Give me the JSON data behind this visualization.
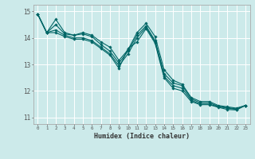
{
  "xlabel": "Humidex (Indice chaleur)",
  "ylabel": "",
  "bg_color": "#cceaea",
  "grid_color": "#ffffff",
  "line_color": "#006666",
  "xlim": [
    -0.5,
    23.5
  ],
  "ylim": [
    10.75,
    15.25
  ],
  "yticks": [
    11,
    12,
    13,
    14,
    15
  ],
  "xticks": [
    0,
    1,
    2,
    3,
    4,
    5,
    6,
    7,
    8,
    9,
    10,
    11,
    12,
    13,
    14,
    15,
    16,
    17,
    18,
    19,
    20,
    21,
    22,
    23
  ],
  "lines": [
    [
      14.9,
      14.2,
      14.7,
      14.2,
      14.1,
      14.2,
      14.1,
      13.85,
      13.65,
      13.15,
      13.55,
      14.2,
      14.55,
      14.05,
      12.8,
      12.4,
      12.25,
      11.75,
      11.6,
      11.6,
      11.45,
      11.4,
      11.35,
      11.45
    ],
    [
      14.9,
      14.2,
      14.5,
      14.15,
      14.1,
      14.15,
      14.05,
      13.75,
      13.5,
      13.05,
      13.5,
      14.1,
      14.45,
      13.9,
      12.65,
      12.3,
      12.2,
      11.7,
      11.55,
      11.55,
      11.42,
      11.37,
      11.32,
      11.45
    ],
    [
      14.9,
      14.2,
      14.3,
      14.1,
      14.0,
      14.0,
      13.9,
      13.65,
      13.4,
      12.95,
      13.4,
      14.0,
      14.4,
      13.85,
      12.55,
      12.2,
      12.1,
      11.65,
      11.5,
      11.5,
      11.4,
      11.35,
      11.3,
      11.45
    ],
    [
      14.9,
      14.2,
      14.2,
      14.05,
      13.95,
      13.95,
      13.85,
      13.6,
      13.35,
      12.85,
      13.6,
      13.85,
      14.35,
      13.8,
      12.5,
      12.1,
      12.0,
      11.6,
      11.48,
      11.48,
      11.38,
      11.3,
      11.28,
      11.45
    ]
  ]
}
